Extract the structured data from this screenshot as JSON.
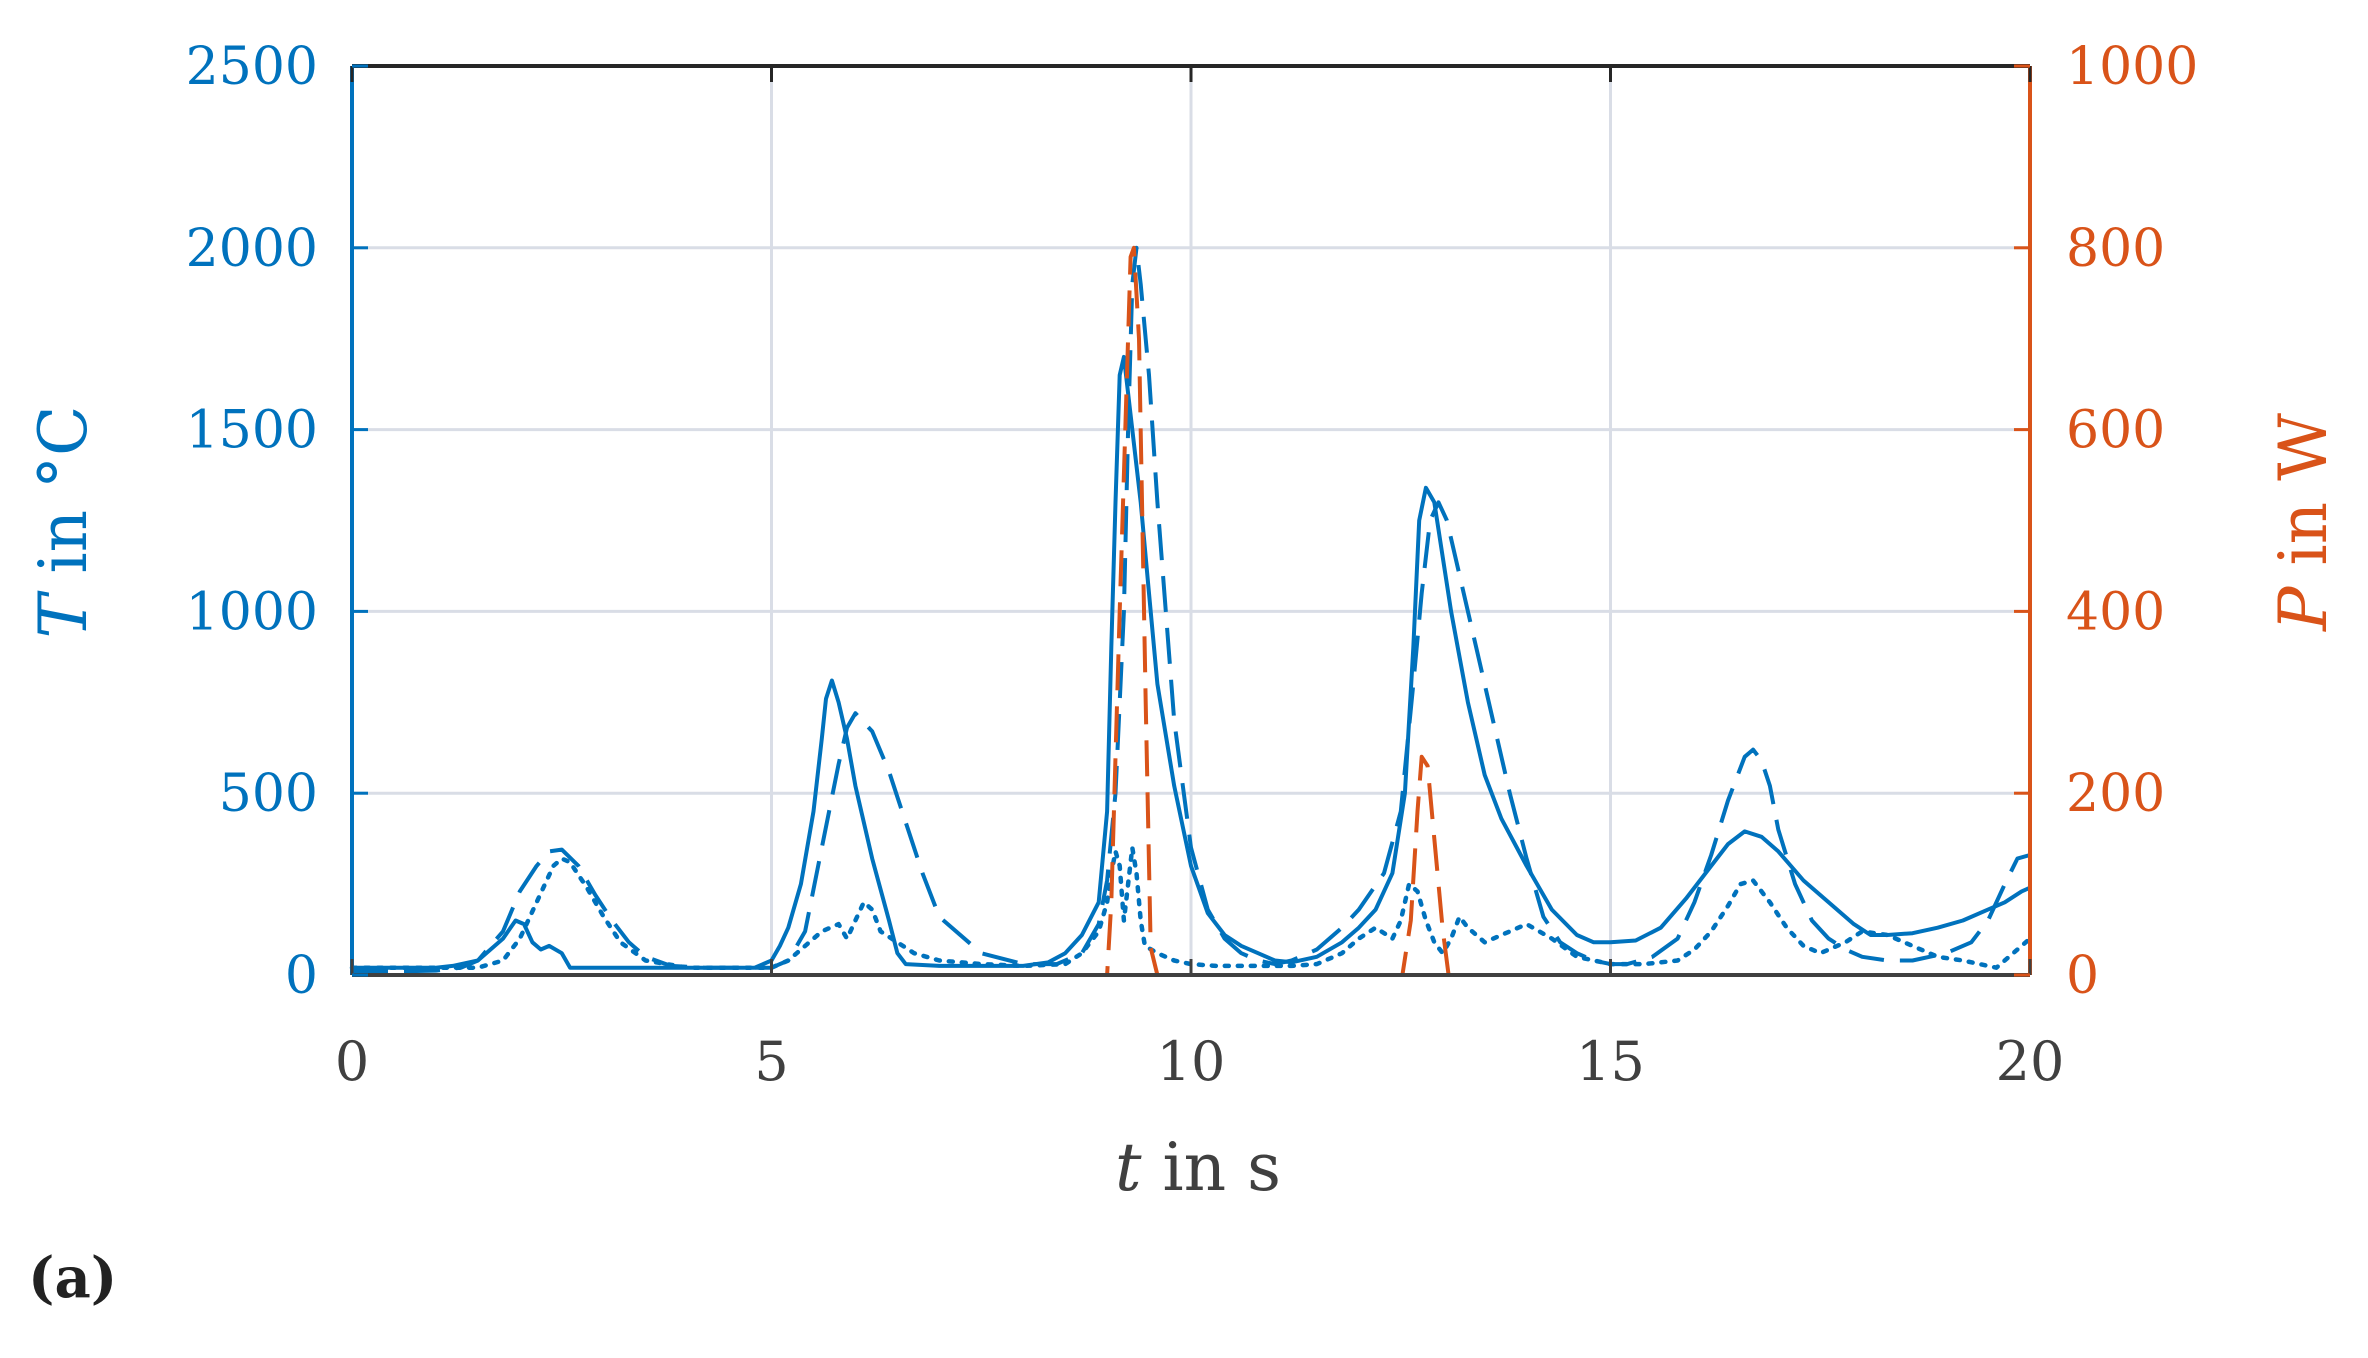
{
  "chart_data": {
    "type": "line",
    "panel_label": "(a)",
    "xlabel_var": "t",
    "xlabel_rest": " in s",
    "ylabel_left_var": "T",
    "ylabel_left_rest": " in °C",
    "ylabel_right_var": "P",
    "ylabel_right_rest": " in W",
    "xlim": [
      0,
      20
    ],
    "ylim_left": [
      0,
      2500
    ],
    "ylim_right": [
      0,
      1000
    ],
    "xticks": [
      0,
      5,
      10,
      15,
      20
    ],
    "yticks_left": [
      0,
      500,
      1000,
      1500,
      2000,
      2500
    ],
    "yticks_right": [
      0,
      200,
      400,
      600,
      800,
      1000
    ],
    "grid": true,
    "colors": {
      "left": "#0072BD",
      "right": "#D95319",
      "axis": "#404040"
    },
    "series": [
      {
        "axis": "left",
        "style": "solid",
        "x": [
          0,
          0.5,
          1,
          1.2,
          1.5,
          1.8,
          1.95,
          2.05,
          2.15,
          2.25,
          2.35,
          2.5,
          2.6,
          2.7,
          2.8,
          3.0,
          4.0,
          4.8,
          5.0,
          5.1,
          5.2,
          5.35,
          5.5,
          5.6,
          5.65,
          5.72,
          5.8,
          5.9,
          6.0,
          6.2,
          6.4,
          6.5,
          6.6,
          7.0,
          7.5,
          8.0,
          8.3,
          8.5,
          8.7,
          8.9,
          9.0,
          9.05,
          9.1,
          9.15,
          9.2,
          9.25,
          9.3,
          9.35,
          9.4,
          9.5,
          9.6,
          9.8,
          10.0,
          10.2,
          10.4,
          10.6,
          10.8,
          11.0,
          11.2,
          11.5,
          11.8,
          12.0,
          12.2,
          12.4,
          12.55,
          12.65,
          12.72,
          12.8,
          12.9,
          13.0,
          13.1,
          13.3,
          13.5,
          13.7,
          14.0,
          14.3,
          14.6,
          14.8,
          15.0,
          15.3,
          15.6,
          15.9,
          16.2,
          16.4,
          16.6,
          16.8,
          17.0,
          17.3,
          17.6,
          17.9,
          18.1,
          18.3,
          18.6,
          18.9,
          19.2,
          19.5,
          19.7,
          19.9,
          20.0
        ],
        "y": [
          20,
          20,
          20,
          25,
          40,
          100,
          150,
          140,
          90,
          70,
          80,
          60,
          20,
          20,
          20,
          20,
          20,
          20,
          40,
          80,
          130,
          250,
          450,
          650,
          760,
          810,
          750,
          650,
          520,
          320,
          150,
          60,
          30,
          25,
          25,
          25,
          35,
          60,
          110,
          200,
          450,
          900,
          1300,
          1650,
          1700,
          1600,
          1500,
          1400,
          1300,
          1050,
          800,
          520,
          300,
          170,
          110,
          80,
          60,
          40,
          35,
          50,
          90,
          130,
          180,
          280,
          500,
          900,
          1250,
          1340,
          1300,
          1150,
          1000,
          750,
          550,
          430,
          300,
          180,
          110,
          90,
          90,
          95,
          130,
          210,
          300,
          360,
          395,
          380,
          340,
          260,
          200,
          140,
          110,
          110,
          115,
          130,
          150,
          180,
          200,
          230,
          240
        ]
      },
      {
        "axis": "left",
        "style": "dashed",
        "x": [
          0,
          0.5,
          1,
          1.3,
          1.5,
          1.8,
          2.0,
          2.2,
          2.35,
          2.5,
          2.7,
          2.9,
          3.1,
          3.3,
          3.5,
          3.8,
          4.2,
          4.6,
          5.0,
          5.2,
          5.4,
          5.6,
          5.8,
          5.9,
          6.0,
          6.2,
          6.4,
          6.6,
          6.8,
          7.0,
          7.5,
          8.0,
          8.4,
          8.7,
          8.9,
          9.0,
          9.1,
          9.2,
          9.25,
          9.3,
          9.35,
          9.4,
          9.5,
          9.6,
          9.7,
          9.8,
          10.0,
          10.2,
          10.4,
          10.6,
          10.8,
          11.0,
          11.2,
          11.5,
          11.8,
          12.0,
          12.3,
          12.5,
          12.65,
          12.75,
          12.85,
          12.95,
          13.05,
          13.2,
          13.4,
          13.6,
          13.8,
          14.0,
          14.2,
          14.4,
          14.6,
          14.8,
          15.0,
          15.2,
          15.5,
          15.8,
          16.0,
          16.2,
          16.4,
          16.6,
          16.7,
          16.8,
          16.9,
          17.0,
          17.2,
          17.4,
          17.6,
          17.8,
          18.0,
          18.3,
          18.6,
          19.0,
          19.3,
          19.5,
          19.7,
          19.85,
          20.0
        ],
        "y": [
          10,
          10,
          12,
          20,
          40,
          120,
          230,
          300,
          340,
          345,
          300,
          220,
          150,
          90,
          50,
          25,
          20,
          20,
          20,
          40,
          120,
          350,
          580,
          680,
          720,
          670,
          560,
          420,
          280,
          160,
          60,
          30,
          30,
          60,
          140,
          260,
          500,
          1000,
          1500,
          1900,
          2000,
          1900,
          1650,
          1300,
          1000,
          700,
          350,
          180,
          100,
          60,
          40,
          30,
          40,
          70,
          130,
          180,
          280,
          450,
          800,
          1050,
          1250,
          1300,
          1250,
          1100,
          900,
          700,
          500,
          320,
          160,
          90,
          60,
          40,
          30,
          30,
          50,
          100,
          200,
          330,
          480,
          600,
          620,
          590,
          520,
          400,
          250,
          150,
          100,
          70,
          50,
          40,
          40,
          60,
          90,
          150,
          250,
          320,
          330
        ]
      },
      {
        "axis": "left",
        "style": "dotted",
        "x": [
          0,
          1,
          1.5,
          1.8,
          2.0,
          2.2,
          2.4,
          2.5,
          2.6,
          2.8,
          3.0,
          3.2,
          3.5,
          4.0,
          4.5,
          5.0,
          5.2,
          5.4,
          5.6,
          5.8,
          5.9,
          6.0,
          6.1,
          6.2,
          6.3,
          6.5,
          6.7,
          7.0,
          7.5,
          8.0,
          8.5,
          8.7,
          8.9,
          9.0,
          9.05,
          9.1,
          9.15,
          9.2,
          9.25,
          9.3,
          9.35,
          9.4,
          9.45,
          9.6,
          9.8,
          10.0,
          10.3,
          10.6,
          10.9,
          11.2,
          11.5,
          11.8,
          12.0,
          12.2,
          12.4,
          12.5,
          12.6,
          12.7,
          12.8,
          12.9,
          13.0,
          13.1,
          13.2,
          13.3,
          13.5,
          13.8,
          14.0,
          14.3,
          14.6,
          15.0,
          15.4,
          15.8,
          16.0,
          16.2,
          16.4,
          16.55,
          16.7,
          16.9,
          17.1,
          17.3,
          17.5,
          17.8,
          18.0,
          18.3,
          18.6,
          18.9,
          19.2,
          19.4,
          19.6,
          19.8,
          20.0
        ],
        "y": [
          20,
          20,
          20,
          40,
          100,
          200,
          300,
          320,
          310,
          240,
          160,
          90,
          40,
          20,
          20,
          20,
          40,
          80,
          120,
          140,
          100,
          150,
          200,
          180,
          120,
          90,
          60,
          40,
          30,
          25,
          30,
          60,
          120,
          200,
          280,
          340,
          300,
          150,
          250,
          350,
          280,
          150,
          80,
          60,
          40,
          30,
          25,
          25,
          25,
          25,
          30,
          60,
          100,
          130,
          100,
          150,
          250,
          230,
          150,
          90,
          60,
          100,
          160,
          130,
          90,
          120,
          140,
          100,
          50,
          30,
          30,
          40,
          70,
          120,
          190,
          250,
          260,
          200,
          130,
          80,
          60,
          90,
          120,
          110,
          80,
          50,
          40,
          30,
          20,
          60,
          100
        ]
      },
      {
        "axis": "right",
        "style": "dashed",
        "x": [
          0,
          2,
          4,
          6,
          8,
          8.8,
          9.0,
          9.05,
          9.15,
          9.28,
          9.32,
          9.38,
          9.46,
          9.52,
          9.6,
          10,
          12.3,
          12.52,
          12.62,
          12.7,
          12.75,
          12.82,
          12.9,
          13.0,
          13.07,
          13.2,
          16,
          20
        ],
        "y": [
          0,
          0,
          0,
          0,
          0,
          0,
          0,
          80,
          400,
          790,
          800,
          700,
          300,
          30,
          0,
          0,
          0,
          0,
          60,
          180,
          240,
          230,
          150,
          50,
          0,
          0,
          0,
          0
        ]
      }
    ]
  }
}
